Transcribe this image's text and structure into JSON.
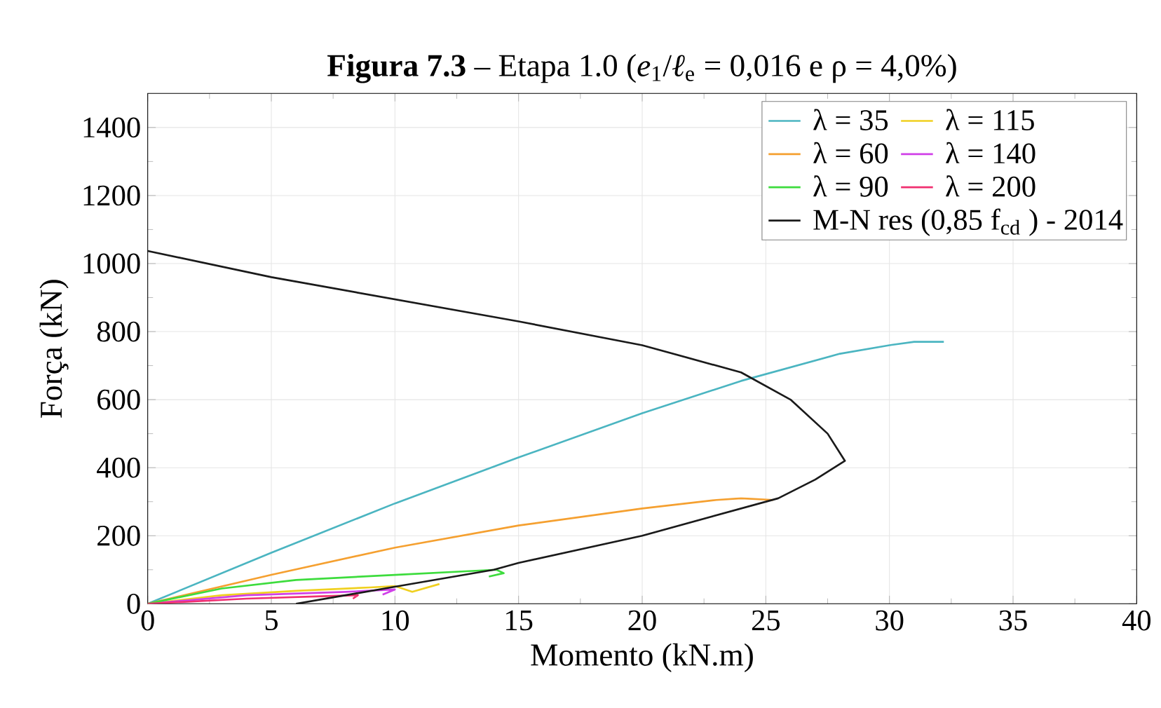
{
  "chart_data": {
    "type": "line",
    "title": "**Figura 7.3** – Etapa 1.0 (*e*$_{1}$/*ℓ*$_{e}$ = 0,016 e ρ = 4,0%)",
    "xlabel": "Momento (kN.m)",
    "ylabel": "Força (kN)",
    "xlim": [
      0,
      40
    ],
    "ylim": [
      0,
      1500
    ],
    "xticks": [
      0,
      5,
      10,
      15,
      20,
      25,
      30,
      35,
      40
    ],
    "yticks": [
      0,
      200,
      400,
      600,
      800,
      1000,
      1200,
      1400
    ],
    "grid": true,
    "legend": "top right",
    "line_style": "solid",
    "marker": "none",
    "series": [
      {
        "name": "λ = 35",
        "color": "#4bb5c1",
        "x": [
          0,
          5,
          10,
          15,
          20,
          24,
          28,
          30,
          31,
          32.2
        ],
        "values": [
          0,
          150,
          295,
          430,
          560,
          655,
          735,
          760,
          770,
          770
        ]
      },
      {
        "name": "λ = 60",
        "color": "#f5a030",
        "x": [
          0,
          5,
          10,
          15,
          20,
          23,
          24,
          25.3
        ],
        "values": [
          0,
          85,
          165,
          230,
          280,
          305,
          310,
          305
        ]
      },
      {
        "name": "λ = 90",
        "color": "#3ddc3d",
        "x": [
          0,
          3,
          6,
          10,
          14.1,
          14.4,
          13.8
        ],
        "values": [
          0,
          45,
          70,
          85,
          100,
          90,
          80
        ]
      },
      {
        "name": "λ = 115",
        "color": "#f0d020",
        "x": [
          0,
          3,
          6,
          9,
          10,
          10.7,
          11.8
        ],
        "values": [
          0,
          25,
          38,
          48,
          52,
          35,
          58
        ]
      },
      {
        "name": "λ = 140",
        "color": "#d040e8",
        "x": [
          0,
          4,
          8,
          10.0,
          9.5
        ],
        "values": [
          0,
          25,
          35,
          42,
          27
        ]
      },
      {
        "name": "λ = 200",
        "color": "#f03070",
        "x": [
          0,
          4,
          7,
          8.5,
          8.3
        ],
        "values": [
          0,
          15,
          22,
          25,
          15
        ]
      },
      {
        "name": "M-N res (0,85 f$_{cd}$ ) - 2014",
        "color": "#1a1a1a",
        "x": [
          0,
          5,
          15,
          20,
          24,
          26,
          27.5,
          28.2,
          27,
          25.5,
          20,
          15,
          14,
          10,
          8,
          6
        ],
        "values": [
          1037,
          960,
          830,
          760,
          680,
          600,
          500,
          420,
          365,
          310,
          200,
          120,
          100,
          50,
          25,
          0
        ]
      }
    ]
  }
}
